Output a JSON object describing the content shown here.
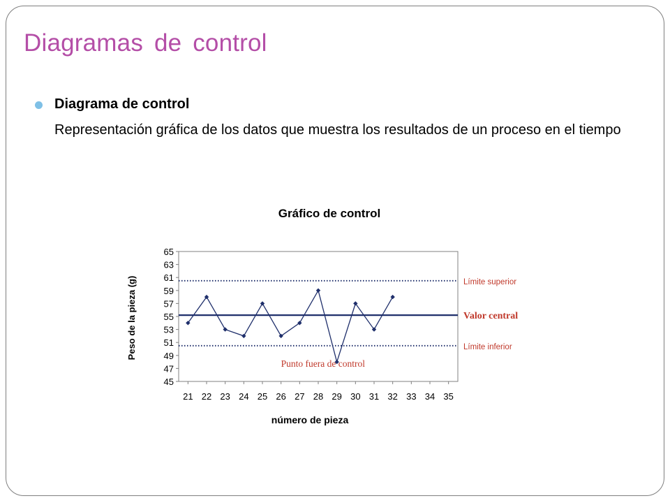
{
  "slide": {
    "title": "Diagramas de control",
    "bullet_heading": "Diagrama de control",
    "bullet_text": "Representación gráfica de los datos que muestra los resultados de un proceso en el tiempo"
  },
  "colors": {
    "title": "#b44ea7",
    "bullet": "#7fc0e6",
    "series": "#1f2f6b",
    "central_line": "#1f2f6b",
    "limit_line": "#1f2f6b",
    "limit_label": "#c0392b",
    "annotation": "#c0392b"
  },
  "chart_data": {
    "type": "line",
    "title": "Gráfico de control",
    "xlabel": "número de pieza",
    "ylabel": "Peso de la pieza (g)",
    "x_ticks": [
      21,
      22,
      23,
      24,
      25,
      26,
      27,
      28,
      29,
      30,
      31,
      32,
      33,
      34,
      35
    ],
    "y_ticks": [
      45,
      47,
      49,
      51,
      53,
      55,
      57,
      59,
      61,
      63,
      65
    ],
    "ylim": [
      45,
      65
    ],
    "xlim": [
      20.5,
      35.5
    ],
    "series": [
      {
        "x": [
          21,
          22,
          23,
          24,
          25,
          26,
          27,
          28,
          29,
          30,
          31,
          32
        ],
        "values": [
          54,
          58,
          53,
          52,
          57,
          52,
          54,
          59,
          48,
          57,
          53,
          58
        ]
      }
    ],
    "reference_lines": [
      {
        "label": "Límite superior",
        "value": 60.5,
        "style": "dotted"
      },
      {
        "label": "Valor central",
        "value": 55.2,
        "style": "solid"
      },
      {
        "label": "Límite inferior",
        "value": 50.5,
        "style": "dotted"
      }
    ],
    "annotations": [
      {
        "text": "Punto fuera de control",
        "x": 29,
        "y": 48
      }
    ]
  }
}
